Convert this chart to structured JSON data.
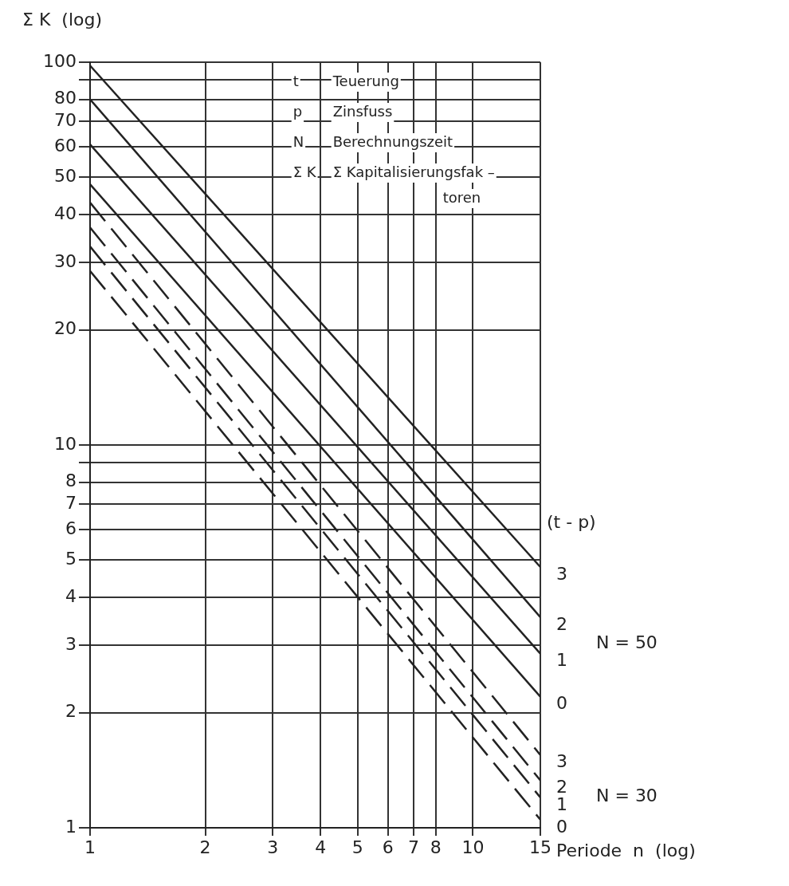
{
  "chart_data": {
    "type": "line",
    "xlabel": "Periode  n  (log)",
    "ylabel": "Σ K  (log)",
    "log": "xy",
    "x": [
      1,
      15
    ],
    "xlim": [
      1,
      15
    ],
    "ylim": [
      1,
      100
    ],
    "xticks": [
      1,
      2,
      3,
      4,
      5,
      6,
      7,
      8,
      10,
      15
    ],
    "yticks": [
      1,
      2,
      3,
      4,
      5,
      6,
      7,
      8,
      {
        "value": 9,
        "label": null
      },
      10,
      20,
      30,
      40,
      50,
      60,
      70,
      80,
      {
        "value": 90,
        "label": null
      },
      100
    ],
    "grid": true,
    "legend": false,
    "marker": "none",
    "annotations": [
      "t",
      "Teuerung",
      "p",
      "Zinsfuss",
      "N",
      "Berechnungszeit",
      "Σ K",
      "Σ Kapitalisierungsfak –",
      "toren",
      "(t - p)",
      "N = 50",
      "N = 30"
    ],
    "series": [
      {
        "name": "3",
        "color": "#222222",
        "values": [
          98,
          4.8
        ],
        "line_style": "solid"
      },
      {
        "name": "2",
        "color": "#222222",
        "values": [
          80,
          3.55
        ],
        "line_style": "solid"
      },
      {
        "name": "1",
        "color": "#222222",
        "values": [
          61,
          2.85
        ],
        "line_style": "solid"
      },
      {
        "name": "0",
        "color": "#222222",
        "values": [
          48,
          2.2
        ],
        "line_style": "solid"
      },
      {
        "name": "3",
        "color": "#222222",
        "values": [
          43,
          1.55
        ],
        "line_style": "dashed"
      },
      {
        "name": "2",
        "color": "#222222",
        "values": [
          37,
          1.33
        ],
        "line_style": "dashed"
      },
      {
        "name": "1",
        "color": "#222222",
        "values": [
          33,
          1.2
        ],
        "line_style": "dashed"
      },
      {
        "name": "0",
        "color": "#222222",
        "values": [
          28.5,
          1.05
        ],
        "line_style": "dashed"
      }
    ]
  }
}
